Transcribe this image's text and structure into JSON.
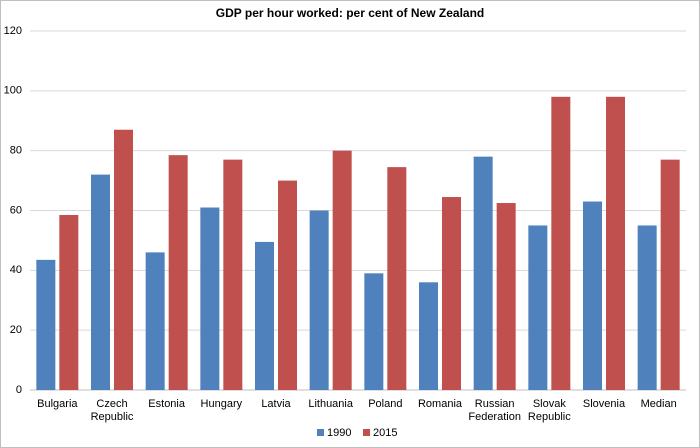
{
  "chart_data": {
    "type": "bar",
    "title": "GDP per hour worked: per cent of New Zealand",
    "categories": [
      "Bulgaria",
      "Czech Republic",
      "Estonia",
      "Hungary",
      "Latvia",
      "Lithuania",
      "Poland",
      "Romania",
      "Russian Federation",
      "Slovak Republic",
      "Slovenia",
      "Median"
    ],
    "series": [
      {
        "name": "1990",
        "color": "#4f81bd",
        "values": [
          43.5,
          72,
          46,
          61,
          49.5,
          60,
          39,
          36,
          78,
          55,
          63,
          55
        ]
      },
      {
        "name": "2015",
        "color": "#c0504d",
        "values": [
          58.5,
          87,
          78.5,
          77,
          70,
          80,
          74.5,
          64.5,
          62.5,
          98,
          98,
          77
        ]
      }
    ],
    "ylim": [
      0,
      120
    ],
    "yticks": [
      0,
      20,
      40,
      60,
      80,
      100,
      120
    ],
    "grid": true,
    "legend": "bottom"
  }
}
